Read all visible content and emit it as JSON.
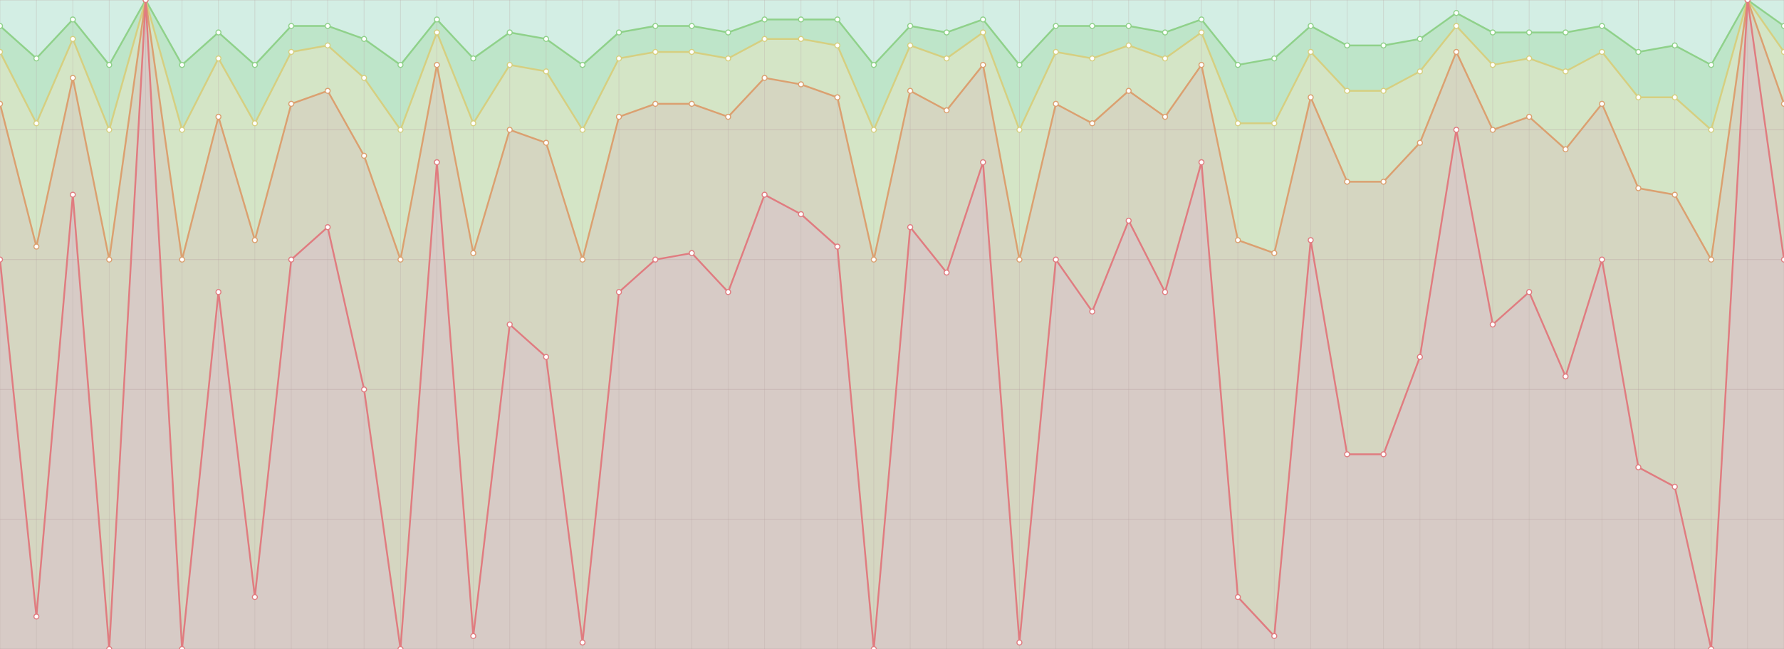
{
  "chart_data": {
    "type": "stacked_area",
    "categories": [
      null,
      null,
      null,
      null,
      null,
      null,
      null,
      null,
      null,
      null,
      null,
      null,
      null,
      null,
      null,
      null,
      null,
      null,
      null,
      null,
      null,
      null,
      null,
      null,
      null,
      null,
      null,
      null,
      null,
      null,
      null,
      null,
      null,
      null,
      null,
      null,
      null,
      null,
      null,
      null,
      null,
      null,
      null,
      null,
      null,
      null,
      null,
      null,
      null,
      null
    ],
    "ylim": [
      0,
      100
    ],
    "yticks": [
      0,
      20,
      40,
      60,
      80,
      100
    ],
    "grid": true,
    "background": "#d3eee4",
    "series": [
      {
        "color": "#e07c80",
        "values": [
          60,
          5,
          70,
          0,
          100,
          0,
          55,
          8,
          60,
          65,
          40,
          0,
          75,
          2,
          50,
          45,
          1,
          55,
          60,
          61,
          55,
          70,
          67,
          62,
          0,
          65,
          58,
          75,
          1,
          60,
          52,
          66,
          55,
          75,
          8,
          2,
          63,
          30,
          30,
          45,
          80,
          50,
          55,
          42,
          60,
          28,
          25,
          0,
          100,
          60
        ]
      },
      {
        "color": "#dba070",
        "values": [
          24,
          57,
          18,
          60,
          0,
          60,
          27,
          55,
          24,
          21,
          36,
          60,
          15,
          59,
          30,
          33,
          59,
          27,
          24,
          23,
          27,
          18,
          20,
          23,
          60,
          21,
          25,
          15,
          59,
          24,
          29,
          20,
          27,
          15,
          55,
          59,
          22,
          42,
          42,
          33,
          12,
          30,
          27,
          35,
          24,
          43,
          45,
          60,
          0,
          24
        ]
      },
      {
        "color": "#d6cf80",
        "values": [
          8,
          19,
          6,
          20,
          0,
          20,
          9,
          18,
          8,
          7,
          12,
          20,
          5,
          20,
          10,
          11,
          20,
          9,
          8,
          8,
          9,
          6,
          7,
          8,
          20,
          7,
          8,
          5,
          20,
          8,
          10,
          7,
          9,
          5,
          18,
          20,
          7,
          14,
          14,
          11,
          4,
          10,
          9,
          12,
          8,
          14,
          15,
          20,
          0,
          8
        ]
      },
      {
        "color": "#8fd18a",
        "values": [
          4,
          10,
          3,
          10,
          0,
          10,
          4,
          9,
          4,
          3,
          6,
          10,
          2,
          10,
          5,
          5,
          10,
          4,
          4,
          4,
          4,
          3,
          3,
          4,
          10,
          3,
          4,
          2,
          10,
          4,
          5,
          3,
          4,
          2,
          9,
          10,
          4,
          7,
          7,
          5,
          2,
          5,
          4,
          6,
          4,
          7,
          8,
          10,
          0,
          4
        ]
      }
    ]
  }
}
